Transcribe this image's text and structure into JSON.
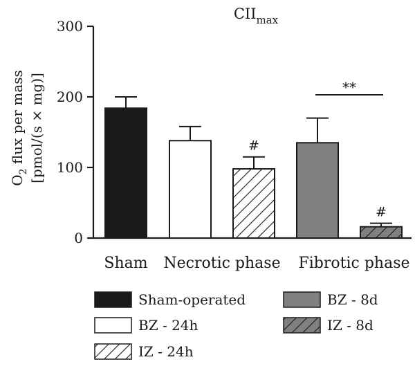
{
  "chart_data": {
    "type": "bar",
    "title": "CII",
    "title_subscript": "max",
    "ylabel_line1_prefix": "O",
    "ylabel_line1_subscript": "2",
    "ylabel_line1_suffix": " flux per mass",
    "ylabel_line2": "[pmol/(s × mg)]",
    "ylim": [
      0,
      300
    ],
    "yticks": [
      "0",
      "100",
      "200",
      "300"
    ],
    "groups": [
      "Sham",
      "Necrotic phase",
      "Fibrotic phase"
    ],
    "bars": [
      {
        "series": "Sham-operated",
        "group": "Sham",
        "value": 184,
        "error": 16,
        "fill": "#1a1a1a",
        "pattern": "none",
        "annotation": ""
      },
      {
        "series": "BZ - 24h",
        "group": "Necrotic phase",
        "value": 138,
        "error": 20,
        "fill": "#ffffff",
        "pattern": "none",
        "annotation": ""
      },
      {
        "series": "IZ - 24h",
        "group": "Necrotic phase",
        "value": 98,
        "error": 17,
        "fill": "#ffffff",
        "pattern": "hatch",
        "annotation": "#"
      },
      {
        "series": "BZ - 8d",
        "group": "Fibrotic phase",
        "value": 135,
        "error": 35,
        "fill": "#808080",
        "pattern": "none",
        "annotation": ""
      },
      {
        "series": "IZ - 8d",
        "group": "Fibrotic phase",
        "value": 16,
        "error": 5,
        "fill": "#808080",
        "pattern": "hatch",
        "annotation": "#"
      }
    ],
    "significance": {
      "label": "**",
      "from_bar": 3,
      "to_bar": 4
    },
    "legend": [
      {
        "label": "Sham-operated",
        "fill": "#1a1a1a",
        "pattern": "none"
      },
      {
        "label": "BZ - 24h",
        "fill": "#ffffff",
        "pattern": "none"
      },
      {
        "label": "IZ - 24h",
        "fill": "#ffffff",
        "pattern": "hatch"
      },
      {
        "label": "BZ - 8d",
        "fill": "#808080",
        "pattern": "none"
      },
      {
        "label": "IZ - 8d",
        "fill": "#808080",
        "pattern": "hatch"
      }
    ],
    "legend_placement": "bottom",
    "grid": false
  }
}
